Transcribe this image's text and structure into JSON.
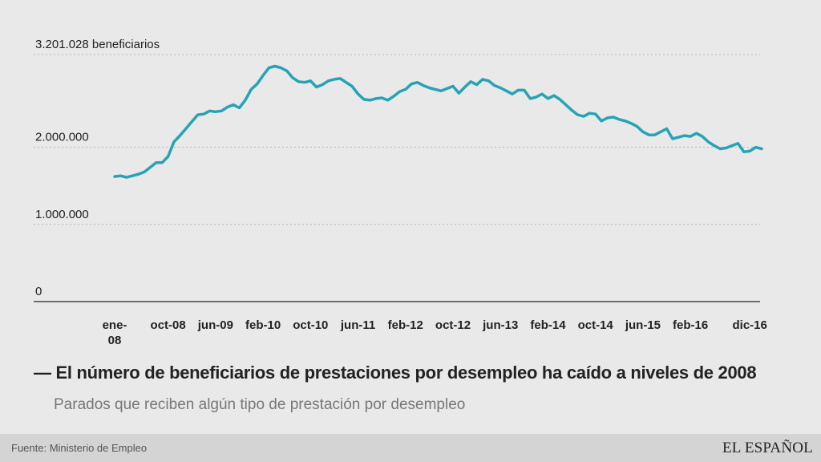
{
  "title": "El número de beneficiarios de prestaciones por desempleo ha caído a niveles de 2008",
  "title_prefix": "—",
  "subtitle": "Parados que reciben algún tipo de prestación por desempleo",
  "source": "Fuente: Ministerio de Empleo",
  "brand": "EL ESPAÑOL",
  "colors": {
    "line": "#27a3b5",
    "grid": "#b8b8b8",
    "axis": "#444444",
    "background": "#e9e9e9"
  },
  "chart_data": {
    "type": "line",
    "title": "El número de beneficiarios de prestaciones por desempleo ha caído a niveles de 2008",
    "ylim": [
      0,
      3201028
    ],
    "y_ticks": [
      {
        "value": 0,
        "label": "0"
      },
      {
        "value": 1000000,
        "label": "1.000.000"
      },
      {
        "value": 2000000,
        "label": "2.000.000"
      },
      {
        "value": 3201028,
        "label": "3.201.028 beneficiarios"
      }
    ],
    "x_tick_labels": [
      {
        "label": "ene-08",
        "lines": [
          "ene-",
          "08"
        ],
        "index": 0
      },
      {
        "label": "oct-08",
        "index": 9
      },
      {
        "label": "jun-09",
        "index": 17
      },
      {
        "label": "feb-10",
        "index": 25
      },
      {
        "label": "oct-10",
        "index": 33
      },
      {
        "label": "jun-11",
        "index": 41
      },
      {
        "label": "feb-12",
        "index": 49
      },
      {
        "label": "oct-12",
        "index": 57
      },
      {
        "label": "jun-13",
        "index": 65
      },
      {
        "label": "feb-14",
        "index": 73
      },
      {
        "label": "oct-14",
        "index": 81
      },
      {
        "label": "jun-15",
        "index": 89
      },
      {
        "label": "feb-16",
        "index": 97
      },
      {
        "label": "dic-16",
        "index": 107
      }
    ],
    "grid": true,
    "series": [
      {
        "values": [
          1620000,
          1630000,
          1610000,
          1630000,
          1650000,
          1680000,
          1740000,
          1800000,
          1800000,
          1880000,
          2070000,
          2150000,
          2240000,
          2330000,
          2420000,
          2430000,
          2470000,
          2460000,
          2470000,
          2520000,
          2550000,
          2510000,
          2610000,
          2750000,
          2820000,
          2930000,
          3030000,
          3050000,
          3030000,
          2990000,
          2900000,
          2850000,
          2840000,
          2860000,
          2780000,
          2810000,
          2860000,
          2880000,
          2890000,
          2840000,
          2790000,
          2690000,
          2620000,
          2610000,
          2630000,
          2640000,
          2610000,
          2660000,
          2720000,
          2750000,
          2820000,
          2840000,
          2800000,
          2770000,
          2750000,
          2730000,
          2760000,
          2790000,
          2700000,
          2780000,
          2850000,
          2810000,
          2880000,
          2860000,
          2800000,
          2770000,
          2730000,
          2690000,
          2740000,
          2740000,
          2630000,
          2650000,
          2690000,
          2630000,
          2670000,
          2620000,
          2550000,
          2480000,
          2420000,
          2400000,
          2440000,
          2430000,
          2340000,
          2380000,
          2390000,
          2360000,
          2340000,
          2310000,
          2270000,
          2200000,
          2160000,
          2160000,
          2200000,
          2240000,
          2110000,
          2130000,
          2150000,
          2140000,
          2180000,
          2140000,
          2070000,
          2020000,
          1980000,
          1990000,
          2020000,
          2050000,
          1940000,
          1950000,
          2000000,
          1980000
        ]
      }
    ]
  }
}
